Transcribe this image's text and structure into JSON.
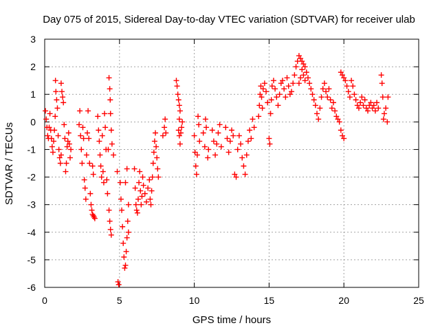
{
  "chart_data": {
    "type": "scatter",
    "title": "Day 075 of 2015, Sidereal Day-to-day VTEC variation (SDTVAR) for receiver ulab",
    "xlabel": "GPS time / hours",
    "ylabel": "SDTVAR / TECUs",
    "xlim": [
      0,
      25
    ],
    "ylim": [
      -6,
      3
    ],
    "xticks": [
      0,
      5,
      10,
      15,
      20,
      25
    ],
    "yticks": [
      -6,
      -5,
      -4,
      -3,
      -2,
      -1,
      0,
      1,
      2,
      3
    ],
    "grid": true,
    "marker": "+",
    "color": "#ff0000",
    "series": [
      {
        "name": "SDTVAR",
        "points": [
          [
            0.05,
            0.4
          ],
          [
            0.1,
            0.1
          ],
          [
            0.15,
            -0.2
          ],
          [
            0.2,
            -0.5
          ],
          [
            0.25,
            -0.6
          ],
          [
            0.3,
            -0.2
          ],
          [
            0.35,
            0.3
          ],
          [
            0.4,
            -0.3
          ],
          [
            0.45,
            -0.6
          ],
          [
            0.5,
            -0.9
          ],
          [
            0.55,
            -1.1
          ],
          [
            0.6,
            -0.7
          ],
          [
            0.65,
            -0.3
          ],
          [
            0.7,
            0.2
          ],
          [
            0.72,
            1.5
          ],
          [
            0.75,
            1.1
          ],
          [
            0.8,
            0.8
          ],
          [
            0.85,
            0.5
          ],
          [
            0.9,
            -0.5
          ],
          [
            0.95,
            -1.0
          ],
          [
            1.0,
            -1.3
          ],
          [
            1.05,
            -1.5
          ],
          [
            1.1,
            -1.2
          ],
          [
            1.1,
            1.4
          ],
          [
            1.15,
            1.1
          ],
          [
            1.2,
            0.9
          ],
          [
            1.25,
            0.7
          ],
          [
            1.3,
            -0.1
          ],
          [
            1.35,
            -0.6
          ],
          [
            1.4,
            -1.8
          ],
          [
            1.45,
            -1.5
          ],
          [
            1.5,
            -0.9
          ],
          [
            1.55,
            -0.7
          ],
          [
            1.6,
            -0.4
          ],
          [
            1.65,
            -0.8
          ],
          [
            1.7,
            -1.3
          ],
          [
            1.75,
            -1.0
          ],
          [
            2.3,
            -0.1
          ],
          [
            2.35,
            0.4
          ],
          [
            2.4,
            -0.5
          ],
          [
            2.45,
            -1.0
          ],
          [
            2.5,
            -1.5
          ],
          [
            2.55,
            -0.2
          ],
          [
            2.6,
            -0.6
          ],
          [
            2.65,
            -2.1
          ],
          [
            2.7,
            -2.4
          ],
          [
            2.75,
            -2.8
          ],
          [
            2.8,
            -1.2
          ],
          [
            2.85,
            -0.4
          ],
          [
            2.9,
            0.4
          ],
          [
            2.95,
            -0.6
          ],
          [
            3.0,
            -1.5
          ],
          [
            3.05,
            -2.6
          ],
          [
            3.1,
            -3.0
          ],
          [
            3.15,
            -3.2
          ],
          [
            3.2,
            -3.35
          ],
          [
            3.25,
            -3.4
          ],
          [
            3.3,
            -3.45
          ],
          [
            3.35,
            -3.5
          ],
          [
            3.2,
            -1.6
          ],
          [
            3.25,
            -1.9
          ],
          [
            3.55,
            0.2
          ],
          [
            3.6,
            -0.3
          ],
          [
            3.65,
            -0.7
          ],
          [
            3.7,
            -1.2
          ],
          [
            3.75,
            -1.6
          ],
          [
            3.8,
            -2.0
          ],
          [
            3.85,
            -0.5
          ],
          [
            3.9,
            -1.8
          ],
          [
            3.95,
            -2.2
          ],
          [
            4.0,
            0.3
          ],
          [
            4.05,
            -0.2
          ],
          [
            4.1,
            -1.0
          ],
          [
            4.15,
            -2.1
          ],
          [
            4.2,
            -2.6
          ],
          [
            4.25,
            -1.0
          ],
          [
            4.3,
            -3.2
          ],
          [
            4.35,
            -3.6
          ],
          [
            4.4,
            -3.9
          ],
          [
            4.45,
            -4.1
          ],
          [
            4.3,
            1.6
          ],
          [
            4.35,
            1.2
          ],
          [
            4.38,
            0.8
          ],
          [
            4.4,
            0.3
          ],
          [
            4.45,
            -0.3
          ],
          [
            4.5,
            -0.8
          ],
          [
            4.6,
            -1.2
          ],
          [
            4.85,
            -1.8
          ],
          [
            4.9,
            -5.8
          ],
          [
            4.95,
            -5.9
          ],
          [
            5.05,
            -2.2
          ],
          [
            5.1,
            -2.8
          ],
          [
            5.15,
            -3.2
          ],
          [
            5.2,
            -3.8
          ],
          [
            5.25,
            -4.4
          ],
          [
            5.3,
            -4.9
          ],
          [
            5.35,
            -5.3
          ],
          [
            5.4,
            -5.2
          ],
          [
            5.45,
            -4.7
          ],
          [
            5.5,
            -4.2
          ],
          [
            5.55,
            -3.6
          ],
          [
            5.6,
            -3.0
          ],
          [
            5.4,
            -2.2
          ],
          [
            5.5,
            -1.7
          ],
          [
            5.6,
            -4.0
          ],
          [
            6.0,
            -1.7
          ],
          [
            6.05,
            -2.4
          ],
          [
            6.1,
            -3.0
          ],
          [
            6.15,
            -3.2
          ],
          [
            6.2,
            -3.3
          ],
          [
            6.25,
            -2.8
          ],
          [
            6.3,
            -2.2
          ],
          [
            6.35,
            -1.8
          ],
          [
            6.4,
            -2.5
          ],
          [
            6.45,
            -3.0
          ],
          [
            6.5,
            -2.7
          ],
          [
            6.55,
            -2.0
          ],
          [
            6.6,
            -2.3
          ],
          [
            6.7,
            -2.6
          ],
          [
            6.8,
            -2.9
          ],
          [
            6.9,
            -2.4
          ],
          [
            7.0,
            -2.1
          ],
          [
            7.05,
            -2.8
          ],
          [
            7.1,
            -3.0
          ],
          [
            7.15,
            -2.5
          ],
          [
            7.2,
            -2.0
          ],
          [
            7.25,
            -1.5
          ],
          [
            7.3,
            -1.1
          ],
          [
            7.35,
            -0.7
          ],
          [
            7.4,
            -0.4
          ],
          [
            7.45,
            -0.9
          ],
          [
            7.5,
            -1.3
          ],
          [
            7.55,
            -1.7
          ],
          [
            7.6,
            -2.0
          ],
          [
            7.9,
            -0.5
          ],
          [
            8.0,
            -0.2
          ],
          [
            8.05,
            0.1
          ],
          [
            8.1,
            -0.4
          ],
          [
            8.8,
            1.5
          ],
          [
            8.85,
            1.3
          ],
          [
            8.9,
            1.0
          ],
          [
            8.95,
            0.8
          ],
          [
            9.0,
            0.6
          ],
          [
            9.05,
            0.4
          ],
          [
            9.0,
            -0.5
          ],
          [
            9.05,
            -0.8
          ],
          [
            9.1,
            -0.4
          ],
          [
            9.15,
            -0.2
          ],
          [
            9.2,
            0.0
          ],
          [
            8.95,
            -0.3
          ],
          [
            9.0,
            0.1
          ],
          [
            10.0,
            -0.5
          ],
          [
            10.05,
            -1.1
          ],
          [
            10.1,
            -1.6
          ],
          [
            10.15,
            -1.9
          ],
          [
            10.2,
            -1.2
          ],
          [
            10.25,
            0.2
          ],
          [
            10.3,
            -0.1
          ],
          [
            10.35,
            -0.7
          ],
          [
            10.6,
            -0.4
          ],
          [
            10.7,
            -0.9
          ],
          [
            10.75,
            0.1
          ],
          [
            10.8,
            -0.2
          ],
          [
            10.9,
            -1.3
          ],
          [
            10.95,
            -1.0
          ],
          [
            11.2,
            -0.3
          ],
          [
            11.3,
            -0.7
          ],
          [
            11.4,
            -1.2
          ],
          [
            11.5,
            -0.8
          ],
          [
            11.6,
            -0.4
          ],
          [
            11.7,
            -0.1
          ],
          [
            11.8,
            -0.9
          ],
          [
            12.1,
            -0.2
          ],
          [
            12.2,
            -0.6
          ],
          [
            12.3,
            -1.1
          ],
          [
            12.4,
            -0.7
          ],
          [
            12.5,
            -0.3
          ],
          [
            12.6,
            -0.5
          ],
          [
            12.7,
            -1.9
          ],
          [
            12.8,
            -2.0
          ],
          [
            12.9,
            -1.0
          ],
          [
            13.0,
            -0.5
          ],
          [
            13.1,
            -0.8
          ],
          [
            13.2,
            -1.3
          ],
          [
            13.3,
            -1.6
          ],
          [
            13.4,
            -1.9
          ],
          [
            13.5,
            -1.2
          ],
          [
            13.6,
            -0.7
          ],
          [
            13.7,
            -0.3
          ],
          [
            13.8,
            -0.6
          ],
          [
            13.9,
            0.1
          ],
          [
            14.0,
            -0.2
          ],
          [
            14.3,
            0.2
          ],
          [
            14.35,
            0.6
          ],
          [
            14.4,
            1.0
          ],
          [
            14.45,
            1.3
          ],
          [
            14.5,
            0.9
          ],
          [
            14.55,
            0.5
          ],
          [
            14.6,
            1.2
          ],
          [
            14.7,
            1.4
          ],
          [
            14.8,
            1.1
          ],
          [
            14.9,
            0.7
          ],
          [
            15.0,
            -0.6
          ],
          [
            15.05,
            -0.8
          ],
          [
            15.1,
            0.3
          ],
          [
            15.15,
            0.8
          ],
          [
            15.2,
            1.3
          ],
          [
            15.3,
            1.5
          ],
          [
            15.4,
            1.2
          ],
          [
            15.5,
            0.9
          ],
          [
            15.6,
            0.6
          ],
          [
            15.7,
            1.0
          ],
          [
            15.8,
            1.4
          ],
          [
            15.9,
            1.5
          ],
          [
            16.0,
            1.2
          ],
          [
            16.1,
            0.9
          ],
          [
            16.2,
            1.6
          ],
          [
            16.3,
            1.3
          ],
          [
            16.4,
            1.0
          ],
          [
            16.5,
            1.1
          ],
          [
            16.6,
            1.4
          ],
          [
            16.7,
            1.7
          ],
          [
            16.8,
            2.0
          ],
          [
            16.9,
            2.2
          ],
          [
            17.0,
            2.4
          ],
          [
            17.1,
            2.3
          ],
          [
            17.2,
            2.2
          ],
          [
            17.3,
            2.1
          ],
          [
            17.4,
            2.0
          ],
          [
            17.5,
            1.8
          ],
          [
            17.6,
            1.6
          ],
          [
            17.7,
            1.4
          ],
          [
            17.0,
            1.4
          ],
          [
            17.1,
            1.6
          ],
          [
            17.2,
            1.9
          ],
          [
            17.3,
            1.7
          ],
          [
            17.4,
            1.5
          ],
          [
            17.8,
            1.2
          ],
          [
            17.9,
            1.0
          ],
          [
            18.0,
            0.8
          ],
          [
            18.1,
            0.6
          ],
          [
            18.2,
            0.3
          ],
          [
            18.3,
            0.1
          ],
          [
            18.4,
            0.5
          ],
          [
            18.5,
            0.9
          ],
          [
            18.6,
            1.2
          ],
          [
            18.7,
            1.4
          ],
          [
            18.8,
            1.1
          ],
          [
            18.9,
            0.9
          ],
          [
            19.0,
            1.2
          ],
          [
            19.1,
            0.8
          ],
          [
            19.2,
            0.5
          ],
          [
            19.3,
            0.7
          ],
          [
            19.4,
            0.4
          ],
          [
            19.5,
            0.2
          ],
          [
            19.6,
            0.1
          ],
          [
            19.7,
            0.0
          ],
          [
            19.8,
            -0.3
          ],
          [
            19.9,
            -0.5
          ],
          [
            20.0,
            -0.6
          ],
          [
            19.8,
            1.8
          ],
          [
            19.9,
            1.7
          ],
          [
            20.0,
            1.6
          ],
          [
            20.1,
            1.5
          ],
          [
            20.2,
            1.3
          ],
          [
            20.3,
            1.1
          ],
          [
            20.4,
            0.9
          ],
          [
            20.5,
            1.5
          ],
          [
            20.6,
            1.3
          ],
          [
            20.7,
            1.0
          ],
          [
            20.8,
            0.8
          ],
          [
            20.9,
            0.6
          ],
          [
            21.0,
            0.5
          ],
          [
            21.1,
            0.7
          ],
          [
            21.2,
            0.9
          ],
          [
            21.3,
            0.6
          ],
          [
            21.4,
            0.8
          ],
          [
            21.5,
            0.5
          ],
          [
            21.6,
            0.4
          ],
          [
            21.7,
            0.6
          ],
          [
            21.8,
            0.7
          ],
          [
            21.9,
            0.5
          ],
          [
            22.0,
            0.6
          ],
          [
            22.1,
            0.4
          ],
          [
            22.2,
            0.7
          ],
          [
            22.3,
            0.5
          ],
          [
            22.5,
            1.7
          ],
          [
            22.55,
            1.4
          ],
          [
            22.6,
            0.9
          ],
          [
            22.65,
            0.1
          ],
          [
            22.7,
            0.3
          ],
          [
            22.8,
            0.5
          ],
          [
            22.9,
            0.0
          ],
          [
            22.95,
            0.9
          ]
        ]
      }
    ]
  }
}
